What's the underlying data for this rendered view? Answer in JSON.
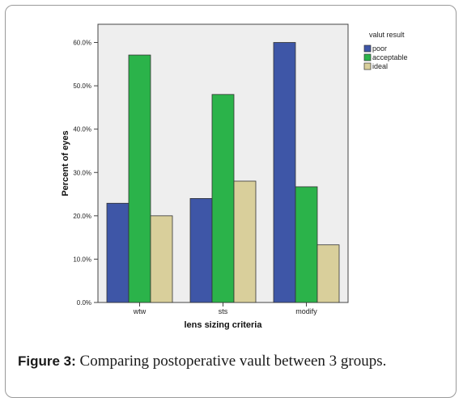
{
  "chart_data": {
    "type": "bar",
    "categories": [
      "wtw",
      "sts",
      "modify"
    ],
    "series": [
      {
        "name": "poor",
        "values": [
          22.9,
          24.0,
          60.0
        ],
        "color": "#3e56a7"
      },
      {
        "name": "acceptable",
        "values": [
          57.1,
          48.0,
          26.7
        ],
        "color": "#2bb34a"
      },
      {
        "name": "ideal",
        "values": [
          20.0,
          28.0,
          13.3
        ],
        "color": "#d9cf9b"
      }
    ],
    "xlabel": "lens sizing criteria",
    "ylabel": "Percent of eyes",
    "ylim": [
      0,
      60
    ],
    "yticks": [
      0,
      10,
      20,
      30,
      40,
      50,
      60
    ],
    "ytick_labels": [
      "0.0%",
      "10.0%",
      "20.0%",
      "30.0%",
      "40.0%",
      "50.0%",
      "60.0%"
    ],
    "legend_title": "valut result",
    "legend_position": "top-right",
    "grid": false,
    "plot_background": "#eeeeee"
  },
  "caption": {
    "label": "Figure 3:",
    "text": " Comparing postoperative vault between 3 groups."
  }
}
